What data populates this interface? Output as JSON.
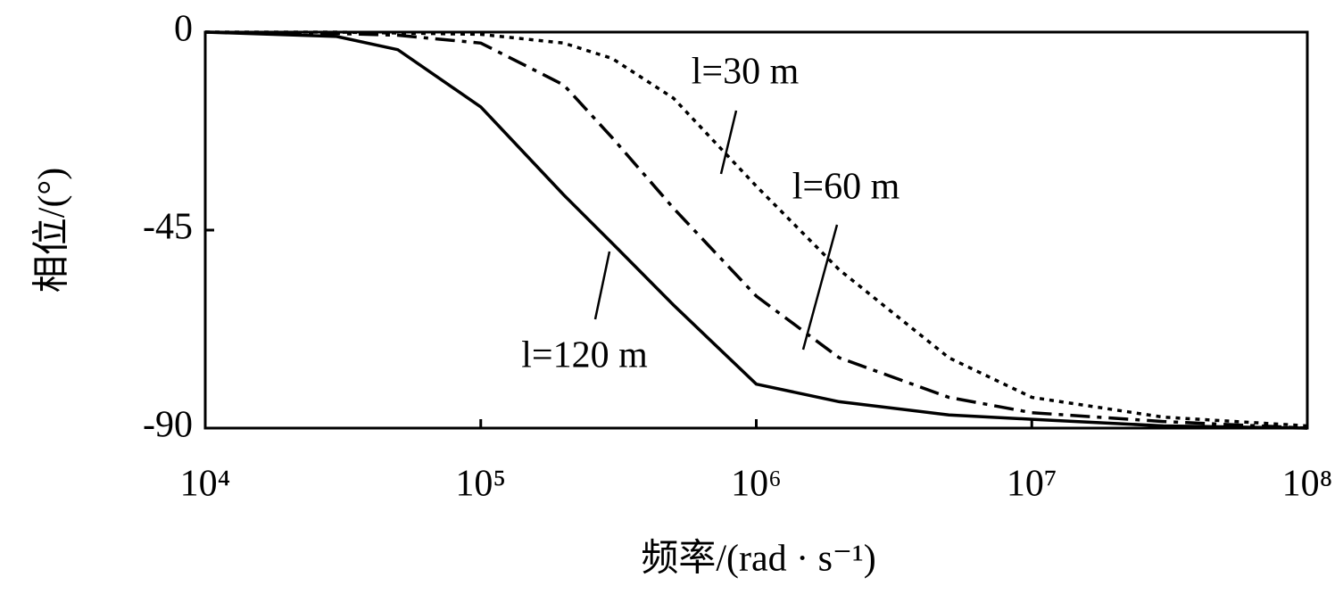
{
  "chart_data": {
    "type": "line",
    "xlabel": "频率/(rad · s⁻¹)",
    "ylabel": "相位/(°)",
    "xscale": "log",
    "x": [
      10000,
      30000,
      50000,
      100000,
      200000,
      300000,
      500000,
      1000000,
      2000000,
      5000000,
      10000000,
      30000000,
      100000000
    ],
    "series": [
      {
        "name": "l=30 m",
        "color": "#000000",
        "dash": "dotted",
        "values": [
          0,
          0,
          -0.2,
          -0.5,
          -2.5,
          -6,
          -15,
          -35,
          -54,
          -74,
          -83,
          -87.5,
          -89.5
        ]
      },
      {
        "name": "l=60 m",
        "color": "#000000",
        "dash": "dashdot",
        "values": [
          0,
          -0.3,
          -0.7,
          -2.5,
          -12,
          -24,
          -40,
          -60,
          -74,
          -83,
          -86.5,
          -88.5,
          -90
        ]
      },
      {
        "name": "l=120 m",
        "color": "#000000",
        "dash": "solid",
        "values": [
          0,
          -1,
          -4,
          -17,
          -37,
          -48,
          -62,
          -80,
          -84,
          -87,
          -88,
          -89.5,
          -90
        ]
      }
    ],
    "xlim": [
      10000,
      100000000
    ],
    "xticks": [
      {
        "value": 10000,
        "label": "10⁴"
      },
      {
        "value": 100000,
        "label": "10⁵"
      },
      {
        "value": 1000000,
        "label": "10⁶"
      },
      {
        "value": 10000000,
        "label": "10⁷"
      },
      {
        "value": 100000000,
        "label": "10⁸"
      }
    ],
    "ylim": [
      -90,
      0
    ],
    "yticks": [
      0,
      -45,
      -90
    ]
  }
}
